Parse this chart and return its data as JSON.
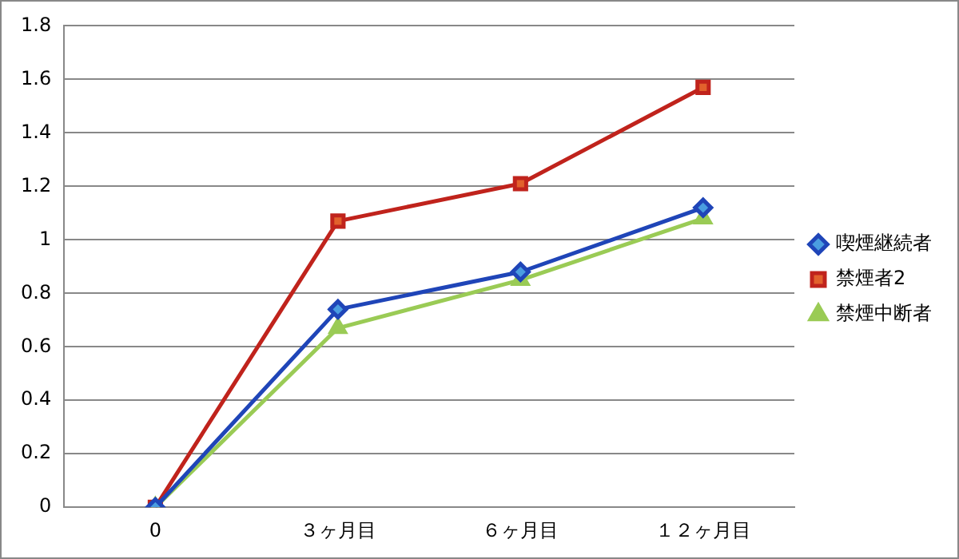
{
  "chart_data": {
    "type": "line",
    "categories": [
      "0",
      "３ヶ月目",
      "６ヶ月目",
      "１２ヶ月目"
    ],
    "series": [
      {
        "name": "喫煙継続者",
        "color": "#1f45b8",
        "marker": "diamond",
        "values": [
          0,
          0.74,
          0.88,
          1.12
        ]
      },
      {
        "name": "禁煙者2",
        "color": "#c0231c",
        "marker": "square",
        "values": [
          0,
          1.07,
          1.21,
          1.57
        ]
      },
      {
        "name": "禁煙中断者",
        "color": "#9acb55",
        "marker": "triangle",
        "values": [
          0,
          0.67,
          0.85,
          1.08
        ]
      }
    ],
    "ylim": [
      0,
      1.8
    ],
    "yticks": [
      0,
      0.2,
      0.4,
      0.6,
      0.8,
      1,
      1.2,
      1.4,
      1.6,
      1.8
    ],
    "grid": "y",
    "legend": "right",
    "line_style": "solid"
  }
}
